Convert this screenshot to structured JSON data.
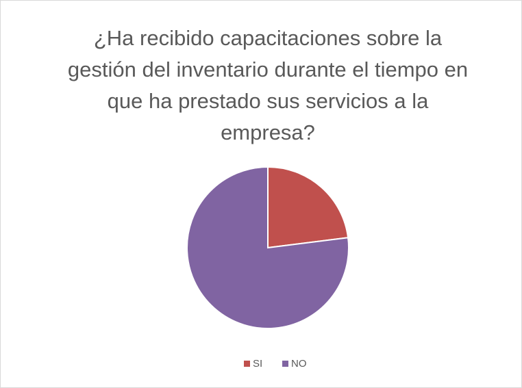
{
  "chart_data": {
    "type": "pie",
    "title": "¿Ha recibido capacitaciones sobre la gestión del inventario durante el tiempo en que ha prestado sus servicios a la empresa?",
    "categories": [
      "SI",
      "NO"
    ],
    "values": [
      23,
      77
    ],
    "colors": [
      "#c0504d",
      "#8064a2"
    ],
    "legend": "bottom"
  }
}
